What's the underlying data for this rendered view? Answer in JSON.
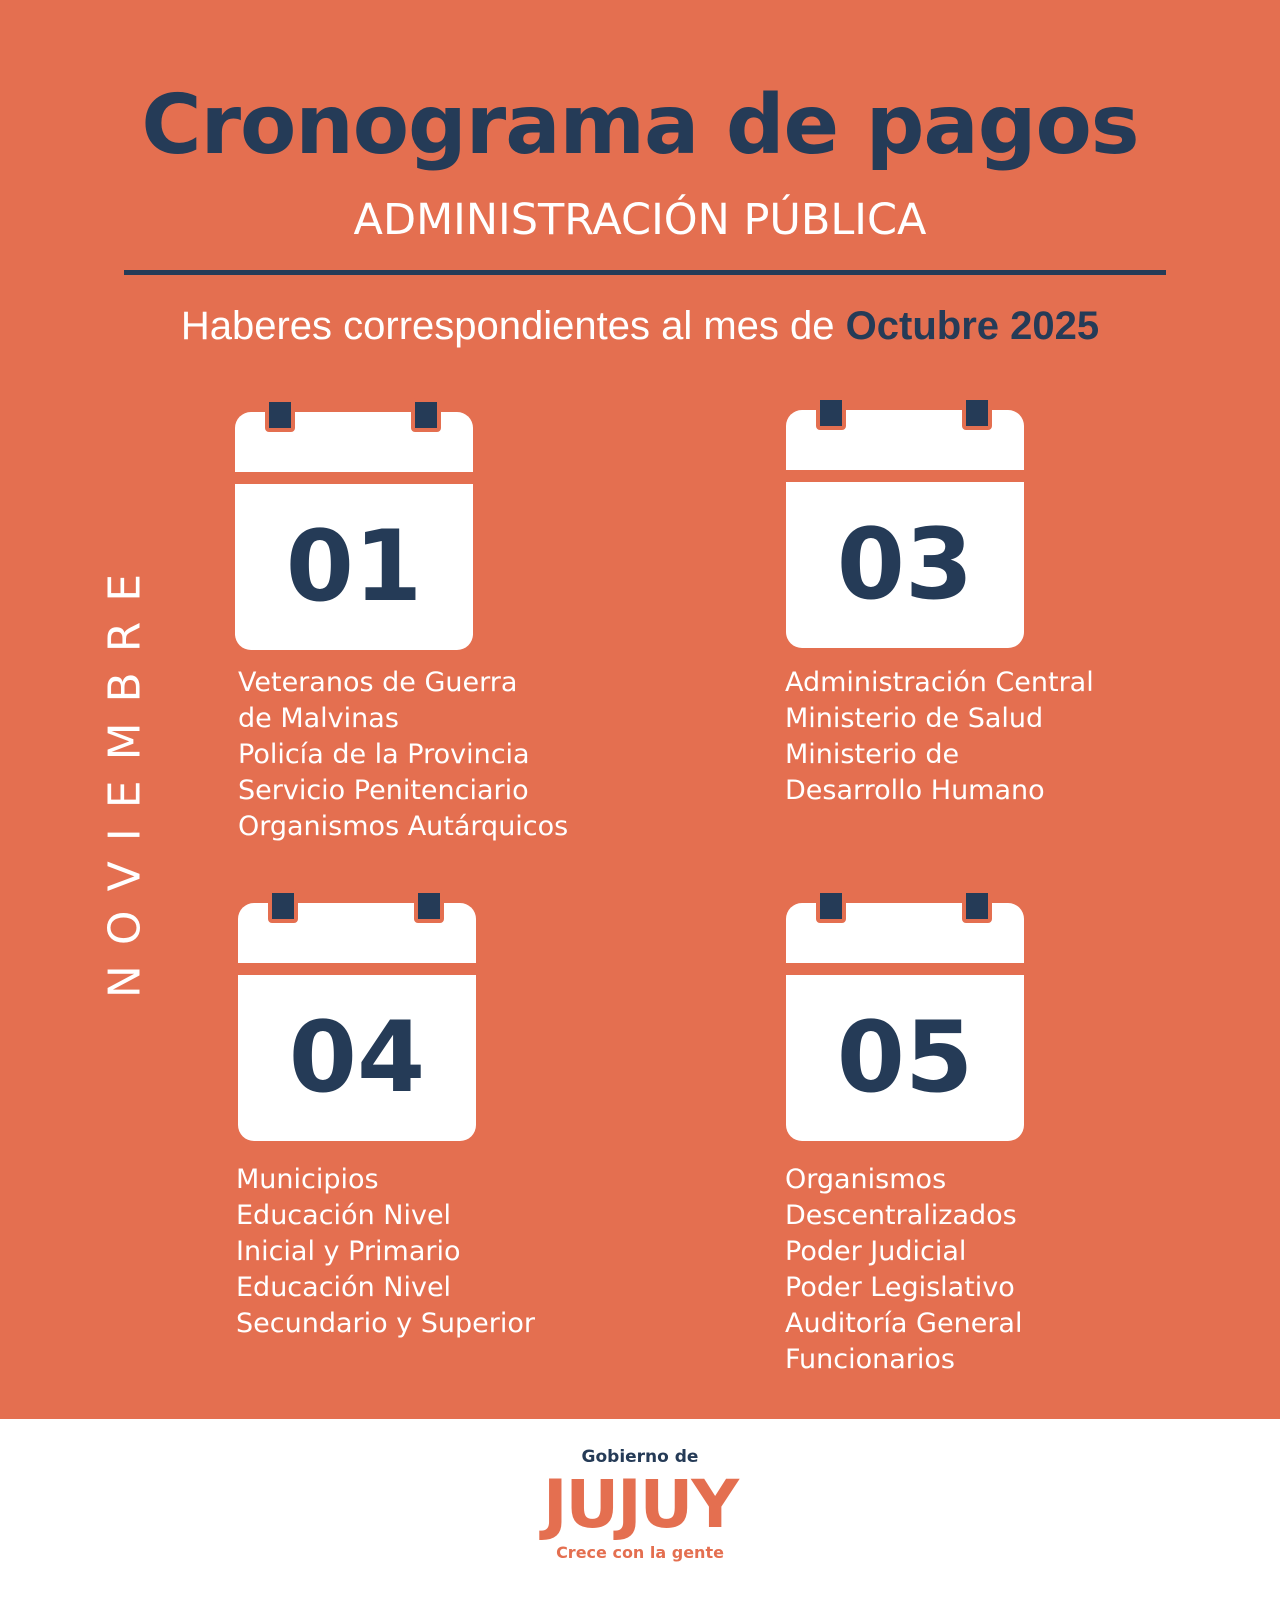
{
  "header": {
    "title": "Cronograma de pagos",
    "subtitle": "ADMINISTRACIÓN PÚBLICA",
    "period_prefix": "Haberes correspondientes al mes de",
    "period_highlight": "Octubre 2025"
  },
  "month_label": "NOVIEMBRE",
  "colors": {
    "background": "#E46F50",
    "accent": "#253B57",
    "text": "#FFFFFF"
  },
  "schedule": [
    {
      "day": "01",
      "icon": "calendar-icon",
      "groups": [
        "Veteranos de Guerra",
        "de Malvinas",
        "Policía de la Provincia",
        "Servicio Penitenciario",
        "Organismos Autárquicos"
      ]
    },
    {
      "day": "03",
      "icon": "calendar-icon",
      "groups": [
        "Administración Central",
        "Ministerio de Salud",
        "Ministerio de",
        "Desarrollo Humano"
      ]
    },
    {
      "day": "04",
      "icon": "calendar-icon",
      "groups": [
        "Municipios",
        "Educación Nivel",
        "Inicial y Primario",
        "Educación Nivel",
        "Secundario y Superior"
      ]
    },
    {
      "day": "05",
      "icon": "calendar-icon",
      "groups": [
        "Organismos",
        "Descentralizados",
        "Poder Judicial",
        "Poder Legislativo",
        "Auditoría General",
        "Funcionarios"
      ]
    }
  ],
  "footer": {
    "logo_top": "Gobierno de",
    "logo_main": "JUJUY",
    "logo_tagline": "Crece con la gente"
  }
}
